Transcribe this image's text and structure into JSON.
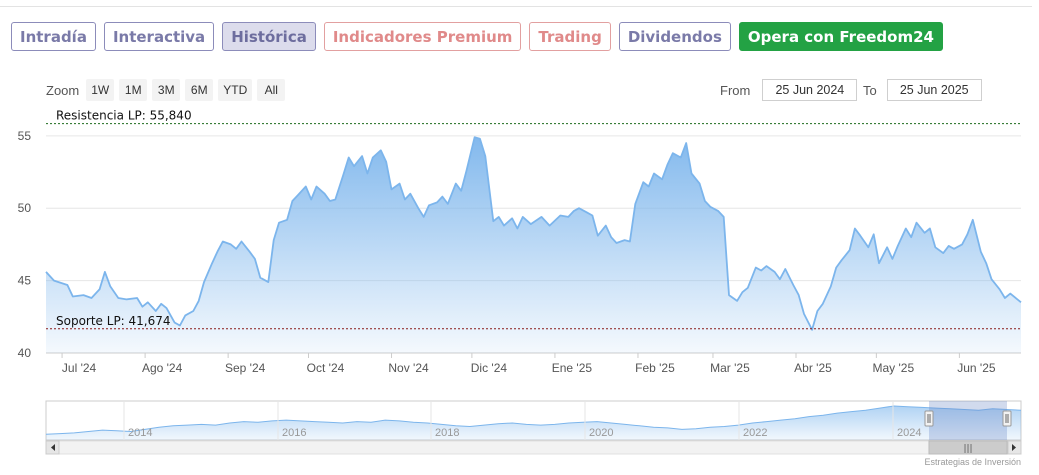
{
  "tabs": [
    {
      "label": "Intradía",
      "style": "default"
    },
    {
      "label": "Interactiva",
      "style": "default"
    },
    {
      "label": "Histórica",
      "style": "active"
    },
    {
      "label": "Indicadores Premium",
      "style": "premium"
    },
    {
      "label": "Trading",
      "style": "premium"
    },
    {
      "label": "Dividendos",
      "style": "default"
    },
    {
      "label": "Opera con Freedom24",
      "style": "freedom"
    }
  ],
  "zoom": {
    "label": "Zoom",
    "buttons": [
      "1W",
      "1M",
      "3M",
      "6M",
      "YTD",
      "All"
    ]
  },
  "range": {
    "from_label": "From",
    "from_value": "25 Jun 2024",
    "to_label": "To",
    "to_value": "25 Jun 2025"
  },
  "chart_data": {
    "type": "area",
    "title": "",
    "xlabel": "",
    "ylabel": "",
    "ylim": [
      40,
      56.3
    ],
    "y_ticks": [
      40,
      45,
      50,
      55
    ],
    "x_ticks": [
      {
        "label": "Jul '24",
        "date": "2024-07-01"
      },
      {
        "label": "Ago '24",
        "date": "2024-08-01"
      },
      {
        "label": "Sep '24",
        "date": "2024-09-01"
      },
      {
        "label": "Oct '24",
        "date": "2024-10-01"
      },
      {
        "label": "Nov '24",
        "date": "2024-11-01"
      },
      {
        "label": "Dic '24",
        "date": "2024-12-01"
      },
      {
        "label": "Ene '25",
        "date": "2025-01-01"
      },
      {
        "label": "Feb '25",
        "date": "2025-02-01"
      },
      {
        "label": "Mar '25",
        "date": "2025-03-01"
      },
      {
        "label": "Abr '25",
        "date": "2025-04-01"
      },
      {
        "label": "May '25",
        "date": "2025-05-01"
      },
      {
        "label": "Jun '25",
        "date": "2025-06-01"
      }
    ],
    "series": [
      {
        "color": "#7cb5ec",
        "points": [
          [
            "2024-06-25",
            45.6
          ],
          [
            "2024-06-28",
            45.0
          ],
          [
            "2024-07-03",
            44.7
          ],
          [
            "2024-07-05",
            43.9
          ],
          [
            "2024-07-09",
            44.0
          ],
          [
            "2024-07-12",
            43.8
          ],
          [
            "2024-07-15",
            44.4
          ],
          [
            "2024-07-17",
            45.6
          ],
          [
            "2024-07-19",
            44.6
          ],
          [
            "2024-07-22",
            43.8
          ],
          [
            "2024-07-25",
            43.7
          ],
          [
            "2024-07-29",
            43.8
          ],
          [
            "2024-07-31",
            43.2
          ],
          [
            "2024-08-02",
            43.5
          ],
          [
            "2024-08-05",
            42.9
          ],
          [
            "2024-08-07",
            43.4
          ],
          [
            "2024-08-09",
            43.1
          ],
          [
            "2024-08-12",
            42.1
          ],
          [
            "2024-08-14",
            41.9
          ],
          [
            "2024-08-16",
            42.6
          ],
          [
            "2024-08-19",
            42.9
          ],
          [
            "2024-08-21",
            43.6
          ],
          [
            "2024-08-23",
            44.9
          ],
          [
            "2024-08-26",
            46.2
          ],
          [
            "2024-08-28",
            47.0
          ],
          [
            "2024-08-30",
            47.7
          ],
          [
            "2024-09-02",
            47.5
          ],
          [
            "2024-09-04",
            47.2
          ],
          [
            "2024-09-06",
            47.7
          ],
          [
            "2024-09-09",
            47.0
          ],
          [
            "2024-09-11",
            46.5
          ],
          [
            "2024-09-13",
            45.2
          ],
          [
            "2024-09-16",
            44.9
          ],
          [
            "2024-09-18",
            47.8
          ],
          [
            "2024-09-20",
            49.0
          ],
          [
            "2024-09-23",
            49.2
          ],
          [
            "2024-09-25",
            50.5
          ],
          [
            "2024-09-27",
            50.9
          ],
          [
            "2024-09-30",
            51.5
          ],
          [
            "2024-10-02",
            50.6
          ],
          [
            "2024-10-04",
            51.5
          ],
          [
            "2024-10-07",
            51.0
          ],
          [
            "2024-10-09",
            50.5
          ],
          [
            "2024-10-11",
            50.6
          ],
          [
            "2024-10-14",
            52.3
          ],
          [
            "2024-10-16",
            53.5
          ],
          [
            "2024-10-18",
            52.9
          ],
          [
            "2024-10-21",
            53.6
          ],
          [
            "2024-10-23",
            52.4
          ],
          [
            "2024-10-25",
            53.5
          ],
          [
            "2024-10-28",
            54.0
          ],
          [
            "2024-10-30",
            53.2
          ],
          [
            "2024-11-01",
            51.3
          ],
          [
            "2024-11-04",
            51.7
          ],
          [
            "2024-11-06",
            50.6
          ],
          [
            "2024-11-08",
            51.0
          ],
          [
            "2024-11-11",
            50.0
          ],
          [
            "2024-11-13",
            49.4
          ],
          [
            "2024-11-15",
            50.2
          ],
          [
            "2024-11-18",
            50.4
          ],
          [
            "2024-11-20",
            50.8
          ],
          [
            "2024-11-22",
            50.3
          ],
          [
            "2024-11-25",
            51.7
          ],
          [
            "2024-11-27",
            51.2
          ],
          [
            "2024-11-29",
            52.6
          ],
          [
            "2024-12-02",
            54.9
          ],
          [
            "2024-12-04",
            54.8
          ],
          [
            "2024-12-06",
            53.6
          ],
          [
            "2024-12-09",
            49.1
          ],
          [
            "2024-12-11",
            49.4
          ],
          [
            "2024-12-13",
            48.8
          ],
          [
            "2024-12-16",
            49.3
          ],
          [
            "2024-12-18",
            48.6
          ],
          [
            "2024-12-20",
            49.4
          ],
          [
            "2024-12-23",
            48.9
          ],
          [
            "2024-12-27",
            49.4
          ],
          [
            "2024-12-30",
            48.8
          ],
          [
            "2025-01-03",
            49.5
          ],
          [
            "2025-01-06",
            49.4
          ],
          [
            "2025-01-08",
            49.8
          ],
          [
            "2025-01-10",
            50.0
          ],
          [
            "2025-01-13",
            49.7
          ],
          [
            "2025-01-15",
            49.5
          ],
          [
            "2025-01-17",
            48.1
          ],
          [
            "2025-01-20",
            48.8
          ],
          [
            "2025-01-22",
            48.0
          ],
          [
            "2025-01-24",
            47.6
          ],
          [
            "2025-01-27",
            47.8
          ],
          [
            "2025-01-29",
            47.7
          ],
          [
            "2025-01-31",
            50.3
          ],
          [
            "2025-02-03",
            51.8
          ],
          [
            "2025-02-05",
            51.5
          ],
          [
            "2025-02-07",
            52.4
          ],
          [
            "2025-02-10",
            52.0
          ],
          [
            "2025-02-12",
            53.0
          ],
          [
            "2025-02-14",
            53.8
          ],
          [
            "2025-02-17",
            53.5
          ],
          [
            "2025-02-19",
            54.5
          ],
          [
            "2025-02-21",
            52.4
          ],
          [
            "2025-02-24",
            51.7
          ],
          [
            "2025-02-26",
            50.5
          ],
          [
            "2025-02-28",
            50.1
          ],
          [
            "2025-03-03",
            49.8
          ],
          [
            "2025-03-05",
            49.4
          ],
          [
            "2025-03-07",
            44.0
          ],
          [
            "2025-03-10",
            43.6
          ],
          [
            "2025-03-12",
            44.2
          ],
          [
            "2025-03-14",
            44.5
          ],
          [
            "2025-03-17",
            45.9
          ],
          [
            "2025-03-19",
            45.7
          ],
          [
            "2025-03-21",
            46.0
          ],
          [
            "2025-03-24",
            45.6
          ],
          [
            "2025-03-26",
            45.1
          ],
          [
            "2025-03-28",
            45.8
          ],
          [
            "2025-03-31",
            44.7
          ],
          [
            "2025-04-02",
            44.0
          ],
          [
            "2025-04-04",
            42.7
          ],
          [
            "2025-04-07",
            41.6
          ],
          [
            "2025-04-09",
            42.9
          ],
          [
            "2025-04-11",
            43.4
          ],
          [
            "2025-04-14",
            44.6
          ],
          [
            "2025-04-16",
            45.9
          ],
          [
            "2025-04-18",
            46.4
          ],
          [
            "2025-04-21",
            47.1
          ],
          [
            "2025-04-23",
            48.6
          ],
          [
            "2025-04-25",
            48.1
          ],
          [
            "2025-04-28",
            47.3
          ],
          [
            "2025-04-30",
            48.2
          ],
          [
            "2025-05-02",
            46.2
          ],
          [
            "2025-05-05",
            47.3
          ],
          [
            "2025-05-07",
            46.5
          ],
          [
            "2025-05-09",
            47.4
          ],
          [
            "2025-05-12",
            48.6
          ],
          [
            "2025-05-14",
            48.0
          ],
          [
            "2025-05-16",
            49.0
          ],
          [
            "2025-05-19",
            48.3
          ],
          [
            "2025-05-21",
            48.6
          ],
          [
            "2025-05-23",
            47.3
          ],
          [
            "2025-05-26",
            46.9
          ],
          [
            "2025-05-28",
            47.4
          ],
          [
            "2025-05-30",
            47.2
          ],
          [
            "2025-06-02",
            47.5
          ],
          [
            "2025-06-04",
            48.2
          ],
          [
            "2025-06-06",
            49.2
          ],
          [
            "2025-06-09",
            47.0
          ],
          [
            "2025-06-11",
            46.2
          ],
          [
            "2025-06-13",
            45.1
          ],
          [
            "2025-06-16",
            44.4
          ],
          [
            "2025-06-18",
            43.8
          ],
          [
            "2025-06-20",
            44.1
          ],
          [
            "2025-06-24",
            43.5
          ]
        ]
      }
    ],
    "plot_lines": [
      {
        "label": "Resistencia LP: 55,840",
        "value": 55.84,
        "color": "#1d6b1d"
      },
      {
        "label": "Soporte LP: 41,674",
        "value": 41.674,
        "color": "#8a1a1a"
      }
    ],
    "navigator": {
      "labels": [
        "2014",
        "2016",
        "2018",
        "2020",
        "2022",
        "2024"
      ],
      "values": [
        8,
        9,
        10,
        12,
        14,
        13,
        12,
        15,
        18,
        20,
        21,
        22,
        21,
        24,
        26,
        25,
        27,
        28,
        27,
        26,
        25,
        24,
        26,
        25,
        28,
        27,
        25,
        24,
        22,
        20,
        19,
        21,
        23,
        24,
        22,
        21,
        22,
        24,
        25,
        26,
        24,
        22,
        20,
        18,
        17,
        15,
        16,
        18,
        19,
        21,
        24,
        26,
        28,
        30,
        33,
        35,
        38,
        40,
        42,
        45,
        48,
        47,
        46,
        45,
        44,
        43,
        42,
        44,
        43,
        42
      ]
    },
    "credit": "Estrategias de Inversión"
  }
}
